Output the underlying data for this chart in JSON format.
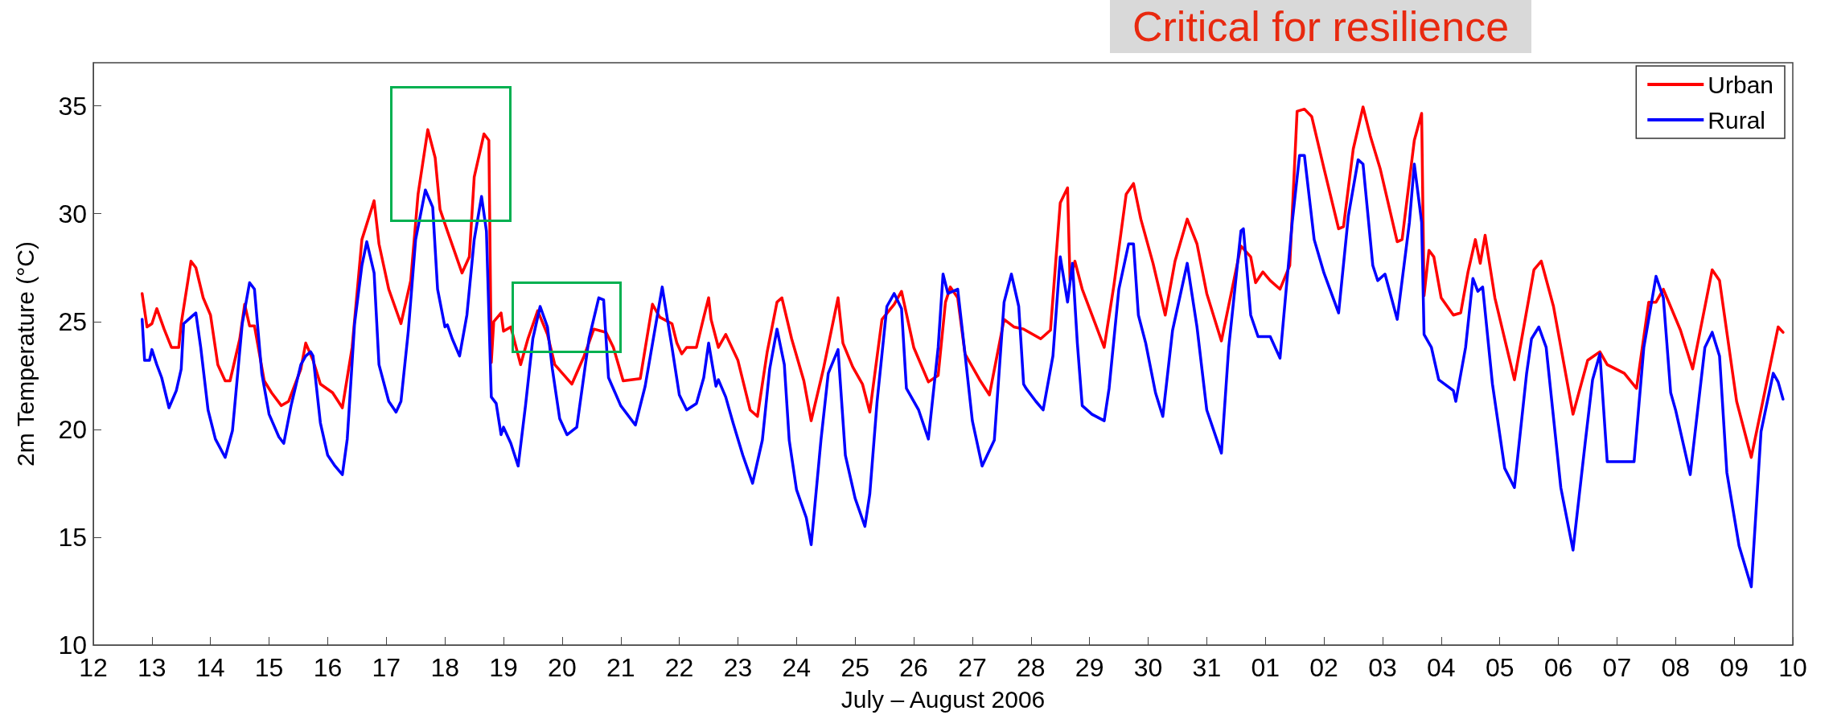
{
  "chart_data": {
    "type": "line",
    "xlabel": "July – August 2006",
    "ylabel": "2m Temperature (°C)",
    "annotations": [
      "Critical for resilience"
    ],
    "xlim": [
      "2006-07-12",
      "2006-08-10"
    ],
    "ylim": [
      10,
      37
    ],
    "yticks": [
      10,
      15,
      20,
      25,
      30,
      35
    ],
    "xticks": [
      {
        "value": "2006-07-12",
        "label": "12"
      },
      {
        "value": "2006-07-13",
        "label": "13"
      },
      {
        "value": "2006-07-14",
        "label": "14"
      },
      {
        "value": "2006-07-15",
        "label": "15"
      },
      {
        "value": "2006-07-16",
        "label": "16"
      },
      {
        "value": "2006-07-17",
        "label": "17"
      },
      {
        "value": "2006-07-18",
        "label": "18"
      },
      {
        "value": "2006-07-19",
        "label": "19"
      },
      {
        "value": "2006-07-20",
        "label": "20"
      },
      {
        "value": "2006-07-21",
        "label": "21"
      },
      {
        "value": "2006-07-22",
        "label": "22"
      },
      {
        "value": "2006-07-23",
        "label": "23"
      },
      {
        "value": "2006-07-24",
        "label": "24"
      },
      {
        "value": "2006-07-25",
        "label": "25"
      },
      {
        "value": "2006-07-26",
        "label": "26"
      },
      {
        "value": "2006-07-27",
        "label": "27"
      },
      {
        "value": "2006-07-28",
        "label": "28"
      },
      {
        "value": "2006-07-29",
        "label": "29"
      },
      {
        "value": "2006-07-30",
        "label": "30"
      },
      {
        "value": "2006-07-31",
        "label": "31"
      },
      {
        "value": "2006-08-01",
        "label": "01"
      },
      {
        "value": "2006-08-02",
        "label": "02"
      },
      {
        "value": "2006-08-03",
        "label": "03"
      },
      {
        "value": "2006-08-04",
        "label": "04"
      },
      {
        "value": "2006-08-05",
        "label": "05"
      },
      {
        "value": "2006-08-06",
        "label": "06"
      },
      {
        "value": "2006-08-07",
        "label": "07"
      },
      {
        "value": "2006-08-08",
        "label": "08"
      },
      {
        "value": "2006-08-09",
        "label": "09"
      },
      {
        "value": "2006-08-10",
        "label": "10"
      }
    ],
    "grid": false,
    "legend": "top right",
    "marker": "none",
    "line_style": "solid",
    "series": [
      {
        "name": "Urban",
        "color": "#ff0000",
        "x": [
          "2006-07-12T20:00",
          "2006-07-12T22:00",
          "2006-07-13T00:00",
          "2006-07-13T02:00",
          "2006-07-13T05:00",
          "2006-07-13T08:00",
          "2006-07-13T11:00",
          "2006-07-13T12:00",
          "2006-07-13T16:00",
          "2006-07-13T18:00",
          "2006-07-13T21:00",
          "2006-07-14T00:00",
          "2006-07-14T03:00",
          "2006-07-14T06:00",
          "2006-07-14T08:00",
          "2006-07-14T12:00",
          "2006-07-14T14:00",
          "2006-07-14T16:00",
          "2006-07-14T18:00",
          "2006-07-14T22:00",
          "2006-07-15T01:00",
          "2006-07-15T05:00",
          "2006-07-15T08:00",
          "2006-07-15T13:00",
          "2006-07-15T15:00",
          "2006-07-15T18:00",
          "2006-07-15T21:00",
          "2006-07-16T02:00",
          "2006-07-16T06:00",
          "2006-07-16T10:00",
          "2006-07-16T14:00",
          "2006-07-16T19:00",
          "2006-07-16T21:00",
          "2006-07-17T01:00",
          "2006-07-17T06:00",
          "2006-07-17T10:00",
          "2006-07-17T13:00",
          "2006-07-17T17:00",
          "2006-07-17T20:00",
          "2006-07-17T22:00",
          "2006-07-18T01:00",
          "2006-07-18T07:00",
          "2006-07-18T10:00",
          "2006-07-18T12:00",
          "2006-07-18T16:00",
          "2006-07-18T18:00",
          "2006-07-18T19:00",
          "2006-07-18T20:00",
          "2006-07-18T23:00",
          "2006-07-19T00:00",
          "2006-07-19T03:00",
          "2006-07-19T07:00",
          "2006-07-19T10:00",
          "2006-07-19T14:00",
          "2006-07-19T18:00",
          "2006-07-19T21:00",
          "2006-07-20T04:00",
          "2006-07-20T09:00",
          "2006-07-20T13:00",
          "2006-07-20T18:00",
          "2006-07-20T21:00",
          "2006-07-21T01:00",
          "2006-07-21T08:00",
          "2006-07-21T13:00",
          "2006-07-21T16:00",
          "2006-07-21T21:00",
          "2006-07-21T23:00",
          "2006-07-22T01:00",
          "2006-07-22T03:00",
          "2006-07-22T07:00",
          "2006-07-22T10:00",
          "2006-07-22T12:00",
          "2006-07-22T13:00",
          "2006-07-22T16:00",
          "2006-07-22T19:00",
          "2006-07-23T00:00",
          "2006-07-23T05:00",
          "2006-07-23T08:00",
          "2006-07-23T12:00",
          "2006-07-23T16:00",
          "2006-07-23T18:00",
          "2006-07-23T22:00",
          "2006-07-24T03:00",
          "2006-07-24T06:00",
          "2006-07-24T11:00",
          "2006-07-24T17:00",
          "2006-07-24T19:00",
          "2006-07-24T23:00",
          "2006-07-25T03:00",
          "2006-07-25T06:00",
          "2006-07-25T11:00",
          "2006-07-25T16:00",
          "2006-07-25T19:00",
          "2006-07-26T00:00",
          "2006-07-26T06:00",
          "2006-07-26T10:00",
          "2006-07-26T13:00",
          "2006-07-26T15:00",
          "2006-07-26T18:00",
          "2006-07-26T21:00",
          "2006-07-27T03:00",
          "2006-07-27T07:00",
          "2006-07-27T13:00",
          "2006-07-27T17:00",
          "2006-07-27T21:00",
          "2006-07-28T04:00",
          "2006-07-28T08:00",
          "2006-07-28T12:00",
          "2006-07-28T15:00",
          "2006-07-28T16:00",
          "2006-07-28T18:00",
          "2006-07-28T21:00",
          "2006-07-29T06:00",
          "2006-07-29T10:00",
          "2006-07-29T15:00",
          "2006-07-29T18:00",
          "2006-07-29T21:00",
          "2006-07-30T02:00",
          "2006-07-30T07:00",
          "2006-07-30T11:00",
          "2006-07-30T16:00",
          "2006-07-30T20:00",
          "2006-07-31T00:00",
          "2006-07-31T06:00",
          "2006-07-31T14:00",
          "2006-07-31T18:00",
          "2006-07-31T20:00",
          "2006-07-31T23:00",
          "2006-08-01T02:00",
          "2006-08-01T06:00",
          "2006-08-01T10:00",
          "2006-08-01T13:00",
          "2006-08-01T16:00",
          "2006-08-01T19:00",
          "2006-08-02T00:00",
          "2006-08-02T06:00",
          "2006-08-02T08:00",
          "2006-08-02T12:00",
          "2006-08-02T16:00",
          "2006-08-02T19:00",
          "2006-08-02T23:00",
          "2006-08-03T06:00",
          "2006-08-03T08:00",
          "2006-08-03T13:00",
          "2006-08-03T16:00",
          "2006-08-03T17:00",
          "2006-08-03T19:00",
          "2006-08-03T21:00",
          "2006-08-04T00:00",
          "2006-08-04T05:00",
          "2006-08-04T08:00",
          "2006-08-04T11:00",
          "2006-08-04T14:00",
          "2006-08-04T16:00",
          "2006-08-04T18:00",
          "2006-08-04T22:00",
          "2006-08-05T06:00",
          "2006-08-05T14:00",
          "2006-08-05T17:00",
          "2006-08-05T22:00",
          "2006-08-06T06:00",
          "2006-08-06T12:00",
          "2006-08-06T17:00",
          "2006-08-06T20:00",
          "2006-08-07T03:00",
          "2006-08-07T08:00",
          "2006-08-07T13:00",
          "2006-08-07T16:00",
          "2006-08-07T19:00",
          "2006-08-08T02:00",
          "2006-08-08T07:00",
          "2006-08-08T15:00",
          "2006-08-08T18:00",
          "2006-08-09T01:00",
          "2006-08-09T07:00",
          "2006-08-09T18:00",
          "2006-08-09T20:00"
        ],
        "values": [
          26.3,
          24.75,
          24.9,
          25.6,
          24.65,
          23.8,
          23.8,
          24.9,
          27.8,
          27.5,
          26.1,
          25.3,
          23.0,
          22.25,
          22.25,
          24.2,
          25.8,
          24.8,
          24.8,
          22.25,
          21.7,
          21.1,
          21.3,
          22.8,
          24.0,
          23.2,
          22.1,
          21.7,
          21.0,
          23.8,
          28.8,
          30.6,
          28.6,
          26.5,
          24.9,
          26.9,
          30.9,
          33.9,
          32.6,
          30.2,
          29.2,
          27.25,
          28.0,
          31.7,
          33.7,
          33.4,
          23.1,
          25.0,
          25.4,
          24.55,
          24.75,
          23.0,
          24.2,
          25.5,
          24.4,
          23.0,
          22.1,
          23.4,
          24.65,
          24.5,
          23.8,
          22.25,
          22.35,
          25.8,
          25.2,
          24.9,
          24.0,
          23.5,
          23.8,
          23.8,
          25.2,
          26.1,
          25.1,
          23.8,
          24.4,
          23.2,
          20.9,
          20.6,
          23.6,
          25.9,
          26.1,
          24.2,
          22.25,
          20.4,
          22.8,
          26.1,
          24.0,
          22.9,
          22.1,
          20.8,
          25.1,
          25.8,
          26.4,
          23.8,
          22.2,
          22.5,
          25.9,
          26.6,
          26.1,
          23.5,
          22.3,
          21.6,
          25.1,
          24.75,
          24.65,
          24.2,
          24.6,
          30.5,
          31.2,
          26.9,
          27.8,
          26.5,
          23.8,
          26.7,
          30.9,
          31.4,
          29.75,
          27.7,
          25.3,
          27.8,
          29.75,
          28.6,
          26.3,
          24.1,
          28.5,
          28.0,
          26.8,
          27.3,
          26.9,
          26.5,
          27.6,
          34.75,
          34.85,
          34.5,
          32.1,
          29.3,
          29.4,
          33.0,
          34.95,
          33.6,
          32.1,
          28.7,
          28.8,
          33.4,
          34.65,
          26.2,
          28.3,
          28.0,
          26.1,
          25.3,
          25.4,
          27.3,
          28.8,
          27.7,
          29.0,
          26.1,
          22.3,
          27.4,
          27.8,
          25.7,
          20.7,
          23.2,
          23.6,
          23.0,
          22.6,
          21.9,
          25.9,
          25.9,
          26.5,
          24.6,
          22.8,
          27.4,
          26.9,
          21.3,
          18.7,
          24.75,
          24.5
        ]
      },
      {
        "name": "Rural",
        "color": "#0000ff",
        "x": [
          "2006-07-12T20:00",
          "2006-07-12T21:00",
          "2006-07-12T23:00",
          "2006-07-13T00:00",
          "2006-07-13T02:00",
          "2006-07-13T04:00",
          "2006-07-13T07:00",
          "2006-07-13T10:00",
          "2006-07-13T12:00",
          "2006-07-13T13:00",
          "2006-07-13T16:00",
          "2006-07-13T18:00",
          "2006-07-13T20:00",
          "2006-07-13T23:00",
          "2006-07-14T02:00",
          "2006-07-14T06:00",
          "2006-07-14T09:00",
          "2006-07-14T13:00",
          "2006-07-14T16:00",
          "2006-07-14T18:00",
          "2006-07-14T21:00",
          "2006-07-15T00:00",
          "2006-07-15T04:00",
          "2006-07-15T06:00",
          "2006-07-15T09:00",
          "2006-07-15T13:00",
          "2006-07-15T15:00",
          "2006-07-15T17:00",
          "2006-07-15T18:00",
          "2006-07-15T21:00",
          "2006-07-16T00:00",
          "2006-07-16T03:00",
          "2006-07-16T06:00",
          "2006-07-16T08:00",
          "2006-07-16T11:00",
          "2006-07-16T14:00",
          "2006-07-16T16:00",
          "2006-07-16T19:00",
          "2006-07-16T21:00",
          "2006-07-17T01:00",
          "2006-07-17T04:00",
          "2006-07-17T06:00",
          "2006-07-17T09:00",
          "2006-07-17T12:00",
          "2006-07-17T16:00",
          "2006-07-17T19:00",
          "2006-07-17T21:00",
          "2006-07-18T00:00",
          "2006-07-18T01:00",
          "2006-07-18T03:00",
          "2006-07-18T06:00",
          "2006-07-18T09:00",
          "2006-07-18T12:00",
          "2006-07-18T15:00",
          "2006-07-18T17:00",
          "2006-07-18T19:00",
          "2006-07-18T21:00",
          "2006-07-18T23:00",
          "2006-07-19T00:00",
          "2006-07-19T03:00",
          "2006-07-19T06:00",
          "2006-07-19T09:00",
          "2006-07-19T12:00",
          "2006-07-19T15:00",
          "2006-07-19T18:00",
          "2006-07-19T20:00",
          "2006-07-19T23:00",
          "2006-07-20T02:00",
          "2006-07-20T06:00",
          "2006-07-20T11:00",
          "2006-07-20T15:00",
          "2006-07-20T17:00",
          "2006-07-20T19:00",
          "2006-07-21T00:00",
          "2006-07-21T06:00",
          "2006-07-21T10:00",
          "2006-07-21T17:00",
          "2006-07-21T21:00",
          "2006-07-22T00:00",
          "2006-07-22T03:00",
          "2006-07-22T07:00",
          "2006-07-22T10:00",
          "2006-07-22T12:00",
          "2006-07-22T15:00",
          "2006-07-22T16:00",
          "2006-07-22T19:00",
          "2006-07-22T22:00",
          "2006-07-23T02:00",
          "2006-07-23T06:00",
          "2006-07-23T10:00",
          "2006-07-23T13:00",
          "2006-07-23T16:00",
          "2006-07-23T19:00",
          "2006-07-23T21:00",
          "2006-07-24T00:00",
          "2006-07-24T04:00",
          "2006-07-24T06:00",
          "2006-07-24T10:00",
          "2006-07-24T13:00",
          "2006-07-24T17:00",
          "2006-07-24T20:00",
          "2006-07-25T00:00",
          "2006-07-25T04:00",
          "2006-07-25T06:00",
          "2006-07-25T09:00",
          "2006-07-25T13:00",
          "2006-07-25T16:00",
          "2006-07-25T19:00",
          "2006-07-25T21:00",
          "2006-07-26T02:00",
          "2006-07-26T06:00",
          "2006-07-26T10:00",
          "2006-07-26T12:00",
          "2006-07-26T14:00",
          "2006-07-26T18:00",
          "2006-07-26T21:00",
          "2006-07-27T00:00",
          "2006-07-27T04:00",
          "2006-07-27T09:00",
          "2006-07-27T13:00",
          "2006-07-27T16:00",
          "2006-07-27T19:00",
          "2006-07-27T21:00",
          "2006-07-27T22:00",
          "2006-07-28T02:00",
          "2006-07-28T05:00",
          "2006-07-28T09:00",
          "2006-07-28T12:00",
          "2006-07-28T15:00",
          "2006-07-28T17:00",
          "2006-07-28T19:00",
          "2006-07-28T21:00",
          "2006-07-29T01:00",
          "2006-07-29T06:00",
          "2006-07-29T08:00",
          "2006-07-29T12:00",
          "2006-07-29T16:00",
          "2006-07-29T18:00",
          "2006-07-29T20:00",
          "2006-07-29T23:00",
          "2006-07-30T03:00",
          "2006-07-30T06:00",
          "2006-07-30T10:00",
          "2006-07-30T16:00",
          "2006-07-30T20:00",
          "2006-07-31T00:00",
          "2006-07-31T06:00",
          "2006-07-31T09:00",
          "2006-07-31T14:00",
          "2006-07-31T15:00",
          "2006-07-31T18:00",
          "2006-07-31T21:00",
          "2006-08-01T02:00",
          "2006-08-01T06:00",
          "2006-08-01T11:00",
          "2006-08-01T14:00",
          "2006-08-01T16:00",
          "2006-08-01T20:00",
          "2006-08-02T00:00",
          "2006-08-02T06:00",
          "2006-08-02T10:00",
          "2006-08-02T14:00",
          "2006-08-02T16:00",
          "2006-08-02T20:00",
          "2006-08-02T22:00",
          "2006-08-03T01:00",
          "2006-08-03T06:00",
          "2006-08-03T11:00",
          "2006-08-03T13:00",
          "2006-08-03T16:00",
          "2006-08-03T17:00",
          "2006-08-03T20:00",
          "2006-08-03T23:00",
          "2006-08-04T05:00",
          "2006-08-04T06:00",
          "2006-08-04T10:00",
          "2006-08-04T13:00",
          "2006-08-04T15:00",
          "2006-08-04T17:00",
          "2006-08-04T21:00",
          "2006-08-05T02:00",
          "2006-08-05T06:00",
          "2006-08-05T11:00",
          "2006-08-05T13:00",
          "2006-08-05T16:00",
          "2006-08-05T19:00",
          "2006-08-06T01:00",
          "2006-08-06T06:00",
          "2006-08-06T11:00",
          "2006-08-06T14:00",
          "2006-08-06T17:00",
          "2006-08-06T20:00",
          "2006-08-07T02:00",
          "2006-08-07T07:00",
          "2006-08-07T11:00",
          "2006-08-07T16:00",
          "2006-08-07T19:00",
          "2006-08-07T22:00",
          "2006-08-08T00:00",
          "2006-08-08T06:00",
          "2006-08-08T12:00",
          "2006-08-08T15:00",
          "2006-08-08T18:00",
          "2006-08-08T21:00",
          "2006-08-09T02:00",
          "2006-08-09T07:00",
          "2006-08-09T11:00",
          "2006-08-09T16:00",
          "2006-08-09T18:00",
          "2006-08-09T20:00"
        ],
        "values": [
          25.1,
          23.2,
          23.2,
          23.7,
          23.0,
          22.4,
          21.0,
          21.8,
          22.8,
          24.9,
          25.2,
          25.4,
          23.8,
          20.9,
          19.55,
          18.7,
          19.95,
          24.9,
          26.8,
          26.5,
          22.6,
          20.7,
          19.65,
          19.35,
          21.1,
          23.0,
          23.4,
          23.6,
          23.4,
          20.3,
          18.8,
          18.3,
          17.9,
          19.55,
          24.9,
          27.6,
          28.7,
          27.25,
          23.0,
          21.3,
          20.8,
          21.3,
          24.55,
          28.8,
          31.1,
          30.3,
          26.5,
          24.75,
          24.85,
          24.2,
          23.4,
          25.3,
          28.8,
          30.8,
          29.2,
          21.5,
          21.2,
          19.75,
          20.1,
          19.35,
          18.3,
          21.1,
          24.2,
          25.7,
          24.75,
          22.8,
          20.5,
          19.75,
          20.1,
          24.2,
          26.1,
          26.0,
          22.4,
          21.1,
          20.2,
          22.0,
          26.6,
          23.8,
          21.6,
          20.9,
          21.2,
          22.4,
          24.0,
          22.0,
          22.3,
          21.5,
          20.3,
          18.8,
          17.5,
          19.5,
          22.8,
          24.65,
          23.0,
          19.5,
          17.2,
          15.9,
          14.65,
          19.5,
          22.6,
          23.7,
          18.8,
          16.8,
          15.5,
          17.0,
          21.3,
          25.7,
          26.3,
          25.6,
          21.9,
          20.9,
          19.55,
          23.8,
          27.2,
          26.3,
          26.5,
          23.5,
          20.4,
          18.3,
          19.5,
          25.9,
          27.2,
          25.7,
          22.1,
          21.9,
          21.3,
          20.9,
          23.4,
          28.0,
          25.9,
          27.7,
          24.0,
          21.1,
          20.7,
          20.4,
          21.9,
          26.5,
          28.6,
          28.6,
          25.3,
          24.0,
          21.7,
          20.6,
          24.6,
          27.7,
          24.75,
          20.9,
          18.9,
          23.8,
          29.2,
          29.3,
          25.3,
          24.3,
          24.3,
          23.3,
          29.6,
          32.7,
          32.7,
          28.8,
          27.25,
          25.4,
          29.9,
          32.5,
          32.3,
          27.6,
          26.9,
          27.2,
          25.1,
          29.6,
          32.3,
          29.6,
          24.4,
          23.8,
          22.3,
          21.8,
          21.3,
          23.8,
          27.0,
          26.4,
          26.6,
          22.1,
          18.2,
          17.3,
          22.6,
          24.2,
          24.75,
          23.8,
          17.3,
          14.4,
          19.4,
          22.3,
          23.5,
          18.5,
          18.5,
          18.5,
          23.8,
          27.1,
          26.1,
          21.7,
          20.9,
          17.9,
          23.8,
          24.5,
          23.4,
          18.0,
          14.6,
          12.7,
          19.9,
          22.6,
          22.2,
          21.4
        ]
      }
    ]
  }
}
